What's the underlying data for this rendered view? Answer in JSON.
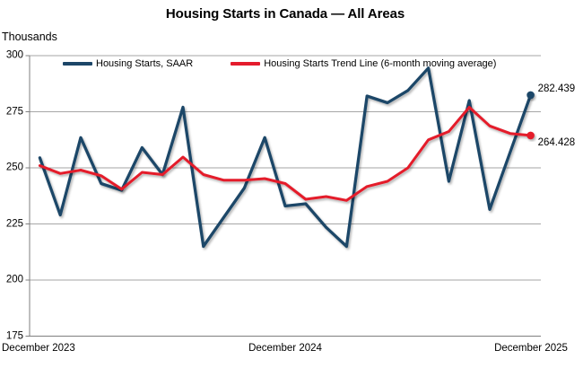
{
  "header": {
    "title": "Housing Starts in Canada — All Areas",
    "unit_label": "Thousands"
  },
  "chart_data": {
    "type": "line",
    "x": [
      "Dec 2023",
      "Jan 2024",
      "Feb 2024",
      "Mar 2024",
      "Apr 2024",
      "May 2024",
      "Jun 2024",
      "Jul 2024",
      "Aug 2024",
      "Sep 2024",
      "Oct 2024",
      "Nov 2024",
      "Dec 2024",
      "Jan 2025",
      "Feb 2025",
      "Mar 2025",
      "Apr 2025",
      "May 2025",
      "Jun 2025",
      "Jul 2025",
      "Aug 2025",
      "Sep 2025",
      "Oct 2025",
      "Nov 2025",
      "Dec 2025"
    ],
    "x_tick_labels": [
      "December 2023",
      "December 2024",
      "December 2025"
    ],
    "y_ticks": [
      175,
      200,
      225,
      250,
      275,
      300
    ],
    "ylim": [
      175,
      300
    ],
    "grid": "horizontal",
    "legend_position": "top",
    "title": "Housing Starts in Canada — All Areas",
    "ylabel": "Thousands",
    "series": [
      {
        "name": "Housing Starts, SAAR",
        "color": "#1C4668",
        "end_label": "282.439",
        "values": [
          254.5,
          229,
          263.5,
          243,
          240,
          259,
          247,
          277,
          215,
          228,
          241,
          263.5,
          233,
          234,
          223.5,
          215,
          282,
          279,
          284.5,
          294.5,
          244,
          280,
          231.5,
          257,
          282.439
        ]
      },
      {
        "name": "Housing Starts Trend Line (6-month moving average)",
        "color": "#E41B2C",
        "end_label": "264.428",
        "values": [
          251,
          247.5,
          249,
          246.5,
          240.5,
          248,
          247,
          254.8,
          247,
          244.5,
          244.5,
          245.2,
          243,
          236,
          237.2,
          235.5,
          241.7,
          244,
          250,
          262.5,
          266.2,
          277,
          268.7,
          265.3,
          264.428
        ]
      }
    ]
  },
  "colors": {
    "gridline": "#A6A6A6",
    "axis": "#7F7F7F",
    "background": "#FFFFFF"
  }
}
